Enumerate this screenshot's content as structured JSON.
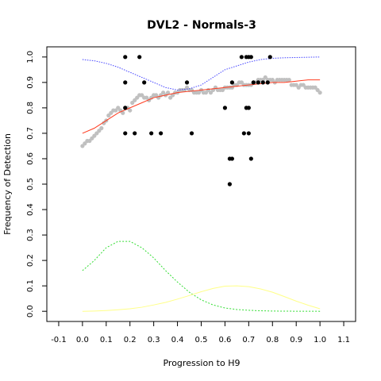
{
  "chart_data": {
    "type": "scatter",
    "title": "DVL2 - Normals-3",
    "xlabel": "Progression to H9",
    "ylabel": "Frequency of Detection",
    "xlim": [
      -0.15,
      1.15
    ],
    "ylim": [
      -0.04,
      1.04
    ],
    "x_ticks": [
      "-0.1",
      "0.0",
      "0.1",
      "0.2",
      "0.3",
      "0.4",
      "0.5",
      "0.6",
      "0.7",
      "0.8",
      "0.9",
      "1.0",
      "1.1"
    ],
    "x_tick_values": [
      -0.1,
      0.0,
      0.1,
      0.2,
      0.3,
      0.4,
      0.5,
      0.6,
      0.7,
      0.8,
      0.9,
      1.0,
      1.1
    ],
    "y_ticks": [
      "0.0",
      "0.1",
      "0.2",
      "0.3",
      "0.4",
      "0.5",
      "0.6",
      "0.7",
      "0.8",
      "0.9",
      "1.0"
    ],
    "y_tick_values": [
      0.0,
      0.1,
      0.2,
      0.3,
      0.4,
      0.5,
      0.6,
      0.7,
      0.8,
      0.9,
      1.0
    ],
    "grid": false,
    "colors": {
      "points": "#000000",
      "smooth": "#c0c0c0",
      "red_fit": "#ff3b1f",
      "blue_line": "#4444ff",
      "green_density": "#33dd33",
      "yellow_density": "#ffff88"
    },
    "series": [
      {
        "kind": "points",
        "x": [
          0.18,
          0.18,
          0.18,
          0.18,
          0.22,
          0.24,
          0.26,
          0.29,
          0.33,
          0.44,
          0.46,
          0.6,
          0.62,
          0.63,
          0.63,
          0.62,
          0.67,
          0.68,
          0.69,
          0.69,
          0.7,
          0.7,
          0.7,
          0.71,
          0.71,
          0.72,
          0.74,
          0.76,
          0.78,
          0.79
        ],
        "y": [
          1.0,
          0.9,
          0.8,
          0.7,
          0.7,
          1.0,
          0.9,
          0.7,
          0.7,
          0.9,
          0.7,
          0.8,
          0.5,
          0.6,
          0.9,
          0.6,
          1.0,
          0.7,
          1.0,
          0.8,
          0.7,
          0.8,
          1.0,
          0.6,
          1.0,
          0.9,
          0.9,
          0.9,
          0.9,
          1.0
        ]
      },
      {
        "kind": "smooth",
        "x": [
          0.0,
          0.01,
          0.02,
          0.03,
          0.04,
          0.05,
          0.06,
          0.07,
          0.08,
          0.09,
          0.1,
          0.11,
          0.12,
          0.13,
          0.14,
          0.15,
          0.16,
          0.17,
          0.18,
          0.19,
          0.2,
          0.21,
          0.22,
          0.23,
          0.24,
          0.25,
          0.26,
          0.27,
          0.28,
          0.29,
          0.3,
          0.31,
          0.32,
          0.33,
          0.34,
          0.35,
          0.36,
          0.37,
          0.38,
          0.39,
          0.4,
          0.41,
          0.42,
          0.43,
          0.44,
          0.45,
          0.46,
          0.47,
          0.48,
          0.49,
          0.5,
          0.51,
          0.52,
          0.53,
          0.54,
          0.55,
          0.56,
          0.57,
          0.58,
          0.59,
          0.6,
          0.61,
          0.62,
          0.63,
          0.64,
          0.65,
          0.66,
          0.67,
          0.68,
          0.69,
          0.7,
          0.71,
          0.72,
          0.73,
          0.74,
          0.75,
          0.76,
          0.77,
          0.78,
          0.79,
          0.8,
          0.81,
          0.82,
          0.83,
          0.84,
          0.85,
          0.86,
          0.87,
          0.88,
          0.89,
          0.9,
          0.91,
          0.92,
          0.93,
          0.94,
          0.95,
          0.96,
          0.97,
          0.98,
          0.99,
          1.0
        ],
        "y": [
          0.65,
          0.66,
          0.67,
          0.67,
          0.68,
          0.69,
          0.7,
          0.71,
          0.72,
          0.74,
          0.75,
          0.77,
          0.78,
          0.79,
          0.79,
          0.8,
          0.79,
          0.78,
          0.8,
          0.8,
          0.79,
          0.82,
          0.83,
          0.84,
          0.85,
          0.85,
          0.84,
          0.84,
          0.83,
          0.84,
          0.85,
          0.85,
          0.84,
          0.85,
          0.86,
          0.85,
          0.86,
          0.84,
          0.85,
          0.86,
          0.86,
          0.87,
          0.87,
          0.87,
          0.88,
          0.87,
          0.87,
          0.86,
          0.86,
          0.86,
          0.87,
          0.86,
          0.86,
          0.87,
          0.86,
          0.87,
          0.88,
          0.87,
          0.87,
          0.87,
          0.88,
          0.88,
          0.88,
          0.88,
          0.89,
          0.89,
          0.9,
          0.9,
          0.89,
          0.89,
          0.89,
          0.89,
          0.9,
          0.9,
          0.91,
          0.91,
          0.91,
          0.92,
          0.91,
          0.91,
          0.91,
          0.9,
          0.91,
          0.91,
          0.91,
          0.91,
          0.91,
          0.91,
          0.89,
          0.89,
          0.89,
          0.88,
          0.89,
          0.89,
          0.88,
          0.88,
          0.88,
          0.88,
          0.88,
          0.87,
          0.86
        ]
      },
      {
        "kind": "red_fit",
        "x": [
          0.0,
          0.05,
          0.1,
          0.15,
          0.2,
          0.25,
          0.3,
          0.35,
          0.4,
          0.45,
          0.5,
          0.55,
          0.6,
          0.65,
          0.7,
          0.75,
          0.8,
          0.85,
          0.9,
          0.95,
          1.0
        ],
        "y": [
          0.7,
          0.72,
          0.75,
          0.78,
          0.8,
          0.82,
          0.84,
          0.85,
          0.86,
          0.865,
          0.87,
          0.875,
          0.88,
          0.885,
          0.89,
          0.895,
          0.9,
          0.9,
          0.905,
          0.91,
          0.91
        ]
      },
      {
        "kind": "blue_line",
        "x": [
          0.0,
          0.05,
          0.1,
          0.15,
          0.2,
          0.25,
          0.3,
          0.35,
          0.4,
          0.45,
          0.5,
          0.55,
          0.6,
          0.65,
          0.7,
          0.75,
          0.8,
          0.85,
          0.9,
          0.95,
          1.0
        ],
        "y": [
          0.99,
          0.985,
          0.975,
          0.96,
          0.94,
          0.92,
          0.9,
          0.88,
          0.87,
          0.875,
          0.89,
          0.92,
          0.95,
          0.965,
          0.98,
          0.99,
          0.995,
          0.997,
          0.998,
          0.999,
          1.0
        ]
      },
      {
        "kind": "green_density",
        "x": [
          0.0,
          0.05,
          0.1,
          0.15,
          0.2,
          0.25,
          0.3,
          0.35,
          0.4,
          0.45,
          0.5,
          0.55,
          0.6,
          0.65,
          0.7,
          0.75,
          0.8,
          0.85,
          0.9,
          0.95,
          1.0
        ],
        "y": [
          0.16,
          0.2,
          0.25,
          0.275,
          0.275,
          0.25,
          0.21,
          0.16,
          0.115,
          0.075,
          0.045,
          0.025,
          0.013,
          0.007,
          0.004,
          0.002,
          0.001,
          0.0005,
          0.0003,
          0.0001,
          0.0
        ]
      },
      {
        "kind": "yellow_density",
        "x": [
          0.0,
          0.05,
          0.1,
          0.15,
          0.2,
          0.25,
          0.3,
          0.35,
          0.4,
          0.45,
          0.5,
          0.55,
          0.6,
          0.65,
          0.7,
          0.75,
          0.8,
          0.85,
          0.9,
          0.95,
          1.0
        ],
        "y": [
          0.0,
          0.001,
          0.003,
          0.006,
          0.01,
          0.016,
          0.025,
          0.035,
          0.048,
          0.062,
          0.077,
          0.09,
          0.099,
          0.1,
          0.097,
          0.088,
          0.075,
          0.058,
          0.04,
          0.024,
          0.01
        ]
      }
    ]
  }
}
